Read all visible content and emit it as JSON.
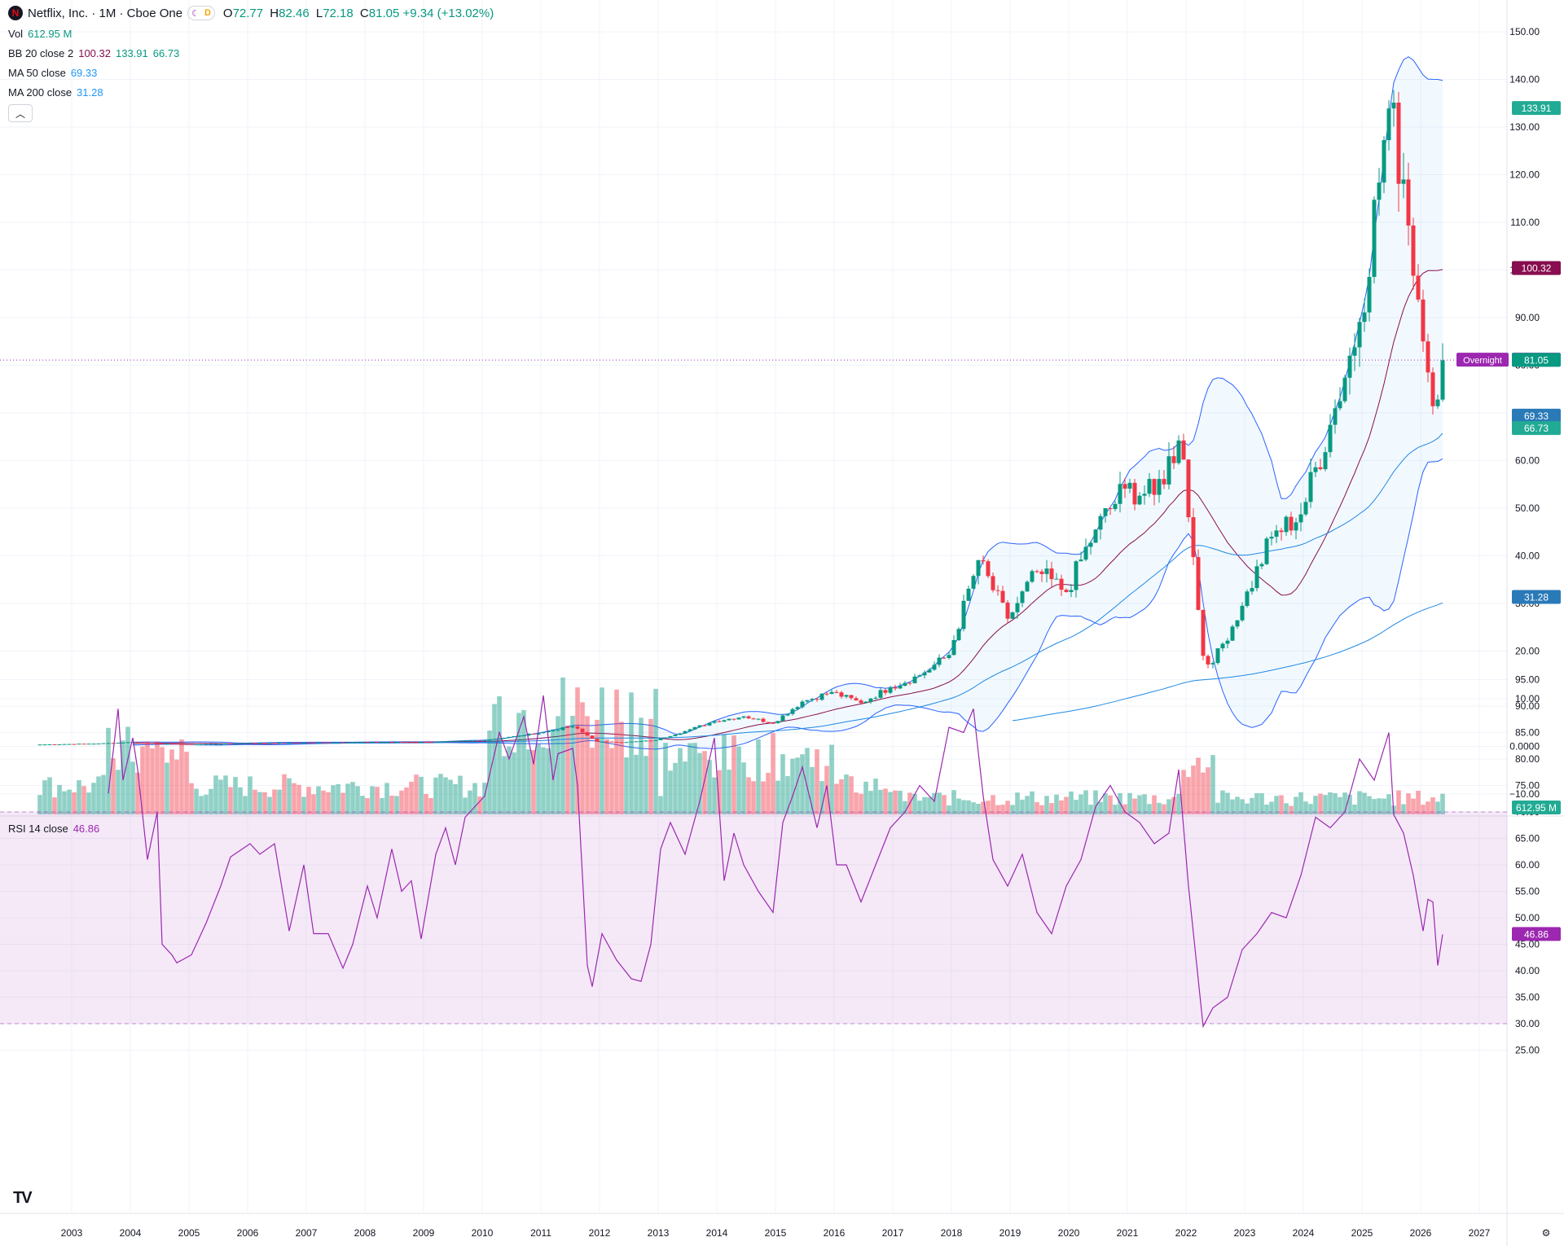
{
  "header": {
    "symbol_title": "Netflix, Inc. · 1M · Cboe One",
    "logo_letter": "N",
    "open_label": "O",
    "open": "72.77",
    "high_label": "H",
    "high": "82.46",
    "low_label": "L",
    "low": "72.18",
    "close_label": "C",
    "close": "81.05",
    "change": "+9.34 (+13.02%)",
    "session_badge": "D"
  },
  "indicators": {
    "vol": {
      "label": "Vol",
      "value": "612.95 M"
    },
    "bb": {
      "label": "BB 20 close 2",
      "basis": "100.32",
      "upper": "133.91",
      "lower": "66.73"
    },
    "ma50": {
      "label": "MA 50 close",
      "value": "69.33"
    },
    "ma200": {
      "label": "MA 200 close",
      "value": "31.28"
    },
    "rsi": {
      "label": "RSI 14 close",
      "value": "46.86"
    }
  },
  "price_axis": {
    "ticks": [
      "150.00",
      "140.00",
      "130.00",
      "120.00",
      "110.00",
      "100.00",
      "90.00",
      "80.00",
      "70.00",
      "60.00",
      "50.00",
      "40.00",
      "30.00",
      "20.00",
      "10.00",
      "0.0000",
      "−10.00"
    ],
    "tags": {
      "bb_upper": "133.91",
      "bb_basis": "100.32",
      "overnight_label": "Overnight",
      "overnight": "81.09",
      "last": "81.05",
      "ma50": "69.33",
      "bb_lower": "66.73",
      "ma200": "31.28",
      "volume": "612.95 M"
    }
  },
  "rsi_axis": {
    "ticks": [
      "95.00",
      "90.00",
      "85.00",
      "80.00",
      "75.00",
      "70.00",
      "65.00",
      "60.00",
      "55.00",
      "50.00",
      "45.00",
      "40.00",
      "35.00",
      "30.00",
      "25.00"
    ],
    "tag": "46.86"
  },
  "time_axis": {
    "labels": [
      "2003",
      "2004",
      "2005",
      "2006",
      "2007",
      "2008",
      "2009",
      "2010",
      "2011",
      "2012",
      "2013",
      "2014",
      "2015",
      "2016",
      "2017",
      "2018",
      "2019",
      "2020",
      "2021",
      "2022",
      "2023",
      "2024",
      "2025",
      "2026",
      "2027"
    ]
  },
  "colors": {
    "up": "#089981",
    "down": "#f23645",
    "bb": "#2962ff",
    "ma": "#1e88e5",
    "rsi": "#9c27b0",
    "overnight": "#9c27b0",
    "basis": "#880e4f"
  },
  "chart_data": [
    {
      "type": "candlestick",
      "title": "Netflix, Inc. · 1M · Cboe One",
      "ylim": [
        -12,
        153
      ],
      "x_period": "monthly",
      "approx_close_by_date": [
        [
          "2002-06",
          0.4
        ],
        [
          "2003-06",
          0.6
        ],
        [
          "2004-01",
          0.9
        ],
        [
          "2004-06",
          0.6
        ],
        [
          "2005-01",
          0.4
        ],
        [
          "2006-01",
          0.7
        ],
        [
          "2007-01",
          0.8
        ],
        [
          "2008-01",
          0.9
        ],
        [
          "2009-01",
          0.9
        ],
        [
          "2010-01",
          1.3
        ],
        [
          "2010-08",
          2.2
        ],
        [
          "2011-01",
          3.0
        ],
        [
          "2011-07",
          4.2
        ],
        [
          "2011-12",
          1.0
        ],
        [
          "2012-06",
          0.9
        ],
        [
          "2012-12",
          1.3
        ],
        [
          "2013-06",
          3.2
        ],
        [
          "2013-12",
          5.3
        ],
        [
          "2014-06",
          6.3
        ],
        [
          "2014-12",
          4.9
        ],
        [
          "2015-06",
          9.4
        ],
        [
          "2015-12",
          11.4
        ],
        [
          "2016-06",
          9.1
        ],
        [
          "2016-12",
          12.4
        ],
        [
          "2017-06",
          14.9
        ],
        [
          "2017-12",
          19.2
        ],
        [
          "2018-06",
          39.1
        ],
        [
          "2018-12",
          26.8
        ],
        [
          "2019-06",
          36.7
        ],
        [
          "2019-12",
          32.4
        ],
        [
          "2020-06",
          45.5
        ],
        [
          "2020-12",
          54.1
        ],
        [
          "2021-06",
          52.8
        ],
        [
          "2021-11",
          64.2
        ],
        [
          "2021-12",
          60.2
        ],
        [
          "2022-04",
          19.0
        ],
        [
          "2022-06",
          17.5
        ],
        [
          "2022-12",
          29.5
        ],
        [
          "2023-06",
          44.0
        ],
        [
          "2023-12",
          48.7
        ],
        [
          "2024-06",
          67.5
        ],
        [
          "2024-12",
          89.1
        ],
        [
          "2025-06",
          133.9
        ],
        [
          "2025-09",
          119.0
        ],
        [
          "2025-12",
          93.8
        ],
        [
          "2026-02",
          78.5
        ],
        [
          "2026-04",
          72.8
        ],
        [
          "2026-05",
          81.05
        ]
      ],
      "series": [
        {
          "name": "BB 20 close 2",
          "last": [
            100.32,
            133.91,
            66.73
          ]
        },
        {
          "name": "MA 50 close",
          "last": 69.33
        },
        {
          "name": "MA 200 close",
          "last": 31.28
        },
        {
          "name": "Vol",
          "last": "612.95 M"
        }
      ]
    },
    {
      "type": "line",
      "title": "RSI 14 close",
      "ylim": [
        22,
        97
      ],
      "points": [
        [
          "2003-08",
          73.5
        ],
        [
          "2003-10",
          89.5
        ],
        [
          "2003-11",
          76
        ],
        [
          "2004-01",
          84
        ],
        [
          "2004-02",
          78
        ],
        [
          "2004-04",
          61
        ],
        [
          "2004-06",
          70
        ],
        [
          "2004-07",
          45
        ],
        [
          "2004-09",
          43
        ],
        [
          "2004-10",
          41.5
        ],
        [
          "2005-01",
          43
        ],
        [
          "2005-04",
          49
        ],
        [
          "2005-07",
          56
        ],
        [
          "2005-09",
          61.5
        ],
        [
          "2006-01",
          64
        ],
        [
          "2006-03",
          62
        ],
        [
          "2006-06",
          64
        ],
        [
          "2006-09",
          47.5
        ],
        [
          "2006-12",
          60
        ],
        [
          "2007-02",
          47
        ],
        [
          "2007-05",
          47
        ],
        [
          "2007-08",
          40.5
        ],
        [
          "2007-10",
          45
        ],
        [
          "2008-01",
          56
        ],
        [
          "2008-03",
          50
        ],
        [
          "2008-06",
          63
        ],
        [
          "2008-08",
          55
        ],
        [
          "2008-10",
          57
        ],
        [
          "2008-12",
          46
        ],
        [
          "2009-03",
          62
        ],
        [
          "2009-05",
          67
        ],
        [
          "2009-07",
          60
        ],
        [
          "2009-09",
          69
        ],
        [
          "2010-01",
          73
        ],
        [
          "2010-04",
          85
        ],
        [
          "2010-06",
          80
        ],
        [
          "2010-09",
          88
        ],
        [
          "2010-11",
          79
        ],
        [
          "2011-01",
          92
        ],
        [
          "2011-03",
          76
        ],
        [
          "2011-04",
          81
        ],
        [
          "2011-07",
          82
        ],
        [
          "2011-08",
          75
        ],
        [
          "2011-10",
          41
        ],
        [
          "2011-11",
          37
        ],
        [
          "2012-01",
          47
        ],
        [
          "2012-04",
          42
        ],
        [
          "2012-07",
          38.5
        ],
        [
          "2012-09",
          38
        ],
        [
          "2012-11",
          45
        ],
        [
          "2013-01",
          63
        ],
        [
          "2013-03",
          68
        ],
        [
          "2013-06",
          62
        ],
        [
          "2013-09",
          72
        ],
        [
          "2013-12",
          84
        ],
        [
          "2014-02",
          57
        ],
        [
          "2014-04",
          66
        ],
        [
          "2014-06",
          60
        ],
        [
          "2014-09",
          55
        ],
        [
          "2014-12",
          51
        ],
        [
          "2015-02",
          68
        ],
        [
          "2015-04",
          73
        ],
        [
          "2015-06",
          78.5
        ],
        [
          "2015-09",
          67
        ],
        [
          "2015-11",
          75
        ],
        [
          "2016-01",
          60
        ],
        [
          "2016-03",
          60
        ],
        [
          "2016-06",
          53
        ],
        [
          "2016-09",
          60
        ],
        [
          "2016-12",
          67
        ],
        [
          "2017-03",
          70
        ],
        [
          "2017-06",
          75
        ],
        [
          "2017-09",
          72
        ],
        [
          "2017-12",
          86
        ],
        [
          "2018-03",
          85
        ],
        [
          "2018-05",
          89.5
        ],
        [
          "2018-07",
          73
        ],
        [
          "2018-09",
          61
        ],
        [
          "2018-12",
          56
        ],
        [
          "2019-03",
          62
        ],
        [
          "2019-06",
          51
        ],
        [
          "2019-09",
          47
        ],
        [
          "2019-12",
          56
        ],
        [
          "2020-03",
          61
        ],
        [
          "2020-06",
          71
        ],
        [
          "2020-09",
          75
        ],
        [
          "2020-12",
          70
        ],
        [
          "2021-03",
          68
        ],
        [
          "2021-06",
          64
        ],
        [
          "2021-09",
          66
        ],
        [
          "2021-11",
          78
        ],
        [
          "2022-01",
          56
        ],
        [
          "2022-04",
          29.5
        ],
        [
          "2022-06",
          33
        ],
        [
          "2022-09",
          35
        ],
        [
          "2022-12",
          44
        ],
        [
          "2023-03",
          47
        ],
        [
          "2023-06",
          51
        ],
        [
          "2023-09",
          50
        ],
        [
          "2023-12",
          58
        ],
        [
          "2024-03",
          69
        ],
        [
          "2024-06",
          67
        ],
        [
          "2024-09",
          70
        ],
        [
          "2024-12",
          80
        ],
        [
          "2025-03",
          76
        ],
        [
          "2025-06",
          85
        ],
        [
          "2025-07",
          69.5
        ],
        [
          "2025-09",
          66
        ],
        [
          "2025-11",
          58
        ],
        [
          "2026-01",
          47.5
        ],
        [
          "2026-02",
          53.5
        ],
        [
          "2026-03",
          53
        ],
        [
          "2026-04",
          41
        ],
        [
          "2026-05",
          46.86
        ]
      ],
      "bands": [
        30,
        70
      ]
    }
  ],
  "branding": {
    "tv_logo": "TV"
  }
}
